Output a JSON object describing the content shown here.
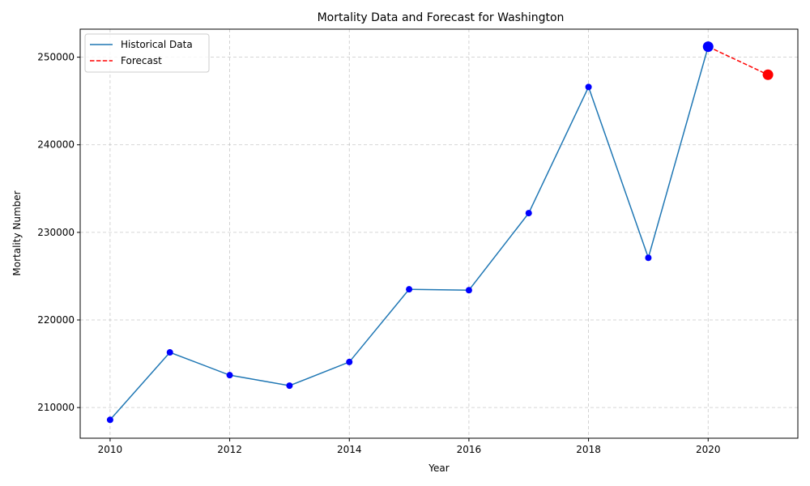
{
  "chart_data": {
    "type": "line",
    "title": "Mortality Data and Forecast for Washington",
    "xlabel": "Year",
    "ylabel": "Mortality Number",
    "xlim": [
      2009.5,
      2021.5
    ],
    "ylim": [
      206500,
      253200
    ],
    "xticks": [
      2010,
      2012,
      2014,
      2016,
      2018,
      2020
    ],
    "yticks": [
      210000,
      220000,
      230000,
      240000,
      250000
    ],
    "grid": true,
    "legend_position": "top-left",
    "series": [
      {
        "name": "Historical Data",
        "style": "solid",
        "color": "#1f77b4",
        "marker_color": "#0000ff",
        "x": [
          2010,
          2011,
          2012,
          2013,
          2014,
          2015,
          2016,
          2017,
          2018,
          2019,
          2020
        ],
        "y": [
          208600,
          216300,
          213700,
          212500,
          215200,
          223500,
          223400,
          232200,
          246600,
          227100,
          251200
        ]
      },
      {
        "name": "Forecast",
        "style": "dashed",
        "color": "#ff0000",
        "marker_color": "#ff0000",
        "x": [
          2020,
          2021
        ],
        "y": [
          251200,
          248000
        ]
      }
    ]
  }
}
